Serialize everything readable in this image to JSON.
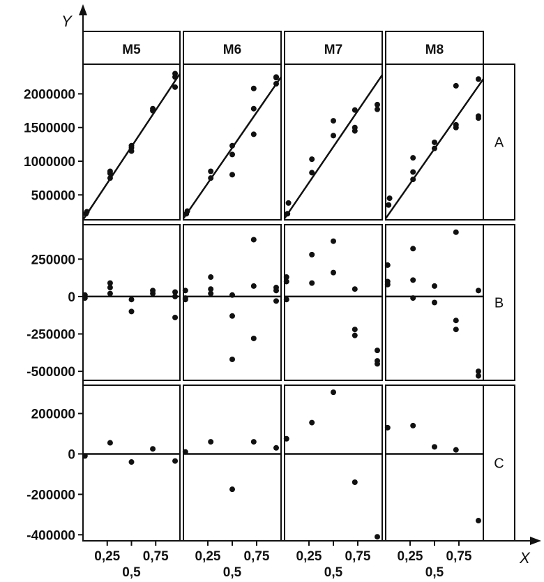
{
  "chart_data": {
    "type": "scatter",
    "axis_x_name": "X",
    "axis_y_name": "Y",
    "models": [
      "M5",
      "M6",
      "M7",
      "M8"
    ],
    "x_tick_labels": [
      "0,25",
      "0,5",
      "0,75"
    ],
    "x_ticks": [
      0.25,
      0.5,
      0.75
    ],
    "xlim": [
      0,
      1
    ],
    "rows": [
      {
        "label": "A",
        "ylim": [
          130000,
          2440000
        ],
        "y_tick_labels": [
          "500000",
          "1000000",
          "1500000",
          "2000000"
        ],
        "y_ticks": [
          500000,
          1000000,
          1500000,
          2000000
        ],
        "zero_line": false,
        "panels": [
          {
            "model": "M5",
            "fit_line": [
              [
                0,
                130000
              ],
              [
                1,
                2300000
              ]
            ],
            "points": [
              [
                0.03,
                220000
              ],
              [
                0.04,
                250000
              ],
              [
                0.28,
                750000
              ],
              [
                0.28,
                820000
              ],
              [
                0.28,
                850000
              ],
              [
                0.5,
                1150000
              ],
              [
                0.5,
                1200000
              ],
              [
                0.5,
                1230000
              ],
              [
                0.72,
                1750000
              ],
              [
                0.72,
                1780000
              ],
              [
                0.95,
                2100000
              ],
              [
                0.95,
                2250000
              ],
              [
                0.95,
                2300000
              ]
            ]
          },
          {
            "model": "M6",
            "fit_line": [
              [
                0,
                150000
              ],
              [
                1,
                2250000
              ]
            ],
            "points": [
              [
                0.03,
                220000
              ],
              [
                0.04,
                260000
              ],
              [
                0.28,
                750000
              ],
              [
                0.28,
                850000
              ],
              [
                0.5,
                800000
              ],
              [
                0.5,
                1100000
              ],
              [
                0.5,
                1230000
              ],
              [
                0.72,
                1400000
              ],
              [
                0.72,
                1780000
              ],
              [
                0.72,
                2080000
              ],
              [
                0.95,
                2150000
              ],
              [
                0.95,
                2240000
              ],
              [
                0.95,
                2250000
              ]
            ]
          },
          {
            "model": "M7",
            "fit_line": [
              [
                0,
                150000
              ],
              [
                1,
                2280000
              ]
            ],
            "points": [
              [
                0.03,
                220000
              ],
              [
                0.04,
                380000
              ],
              [
                0.28,
                830000
              ],
              [
                0.28,
                1030000
              ],
              [
                0.5,
                1380000
              ],
              [
                0.5,
                1600000
              ],
              [
                0.72,
                1450000
              ],
              [
                0.72,
                1500000
              ],
              [
                0.72,
                1760000
              ],
              [
                0.95,
                1770000
              ],
              [
                0.95,
                1840000
              ]
            ]
          },
          {
            "model": "M8",
            "fit_line": [
              [
                0,
                150000
              ],
              [
                1,
                2220000
              ]
            ],
            "points": [
              [
                0.03,
                350000
              ],
              [
                0.04,
                450000
              ],
              [
                0.28,
                730000
              ],
              [
                0.28,
                840000
              ],
              [
                0.28,
                1050000
              ],
              [
                0.5,
                1190000
              ],
              [
                0.5,
                1280000
              ],
              [
                0.72,
                1500000
              ],
              [
                0.72,
                1540000
              ],
              [
                0.72,
                2120000
              ],
              [
                0.95,
                1640000
              ],
              [
                0.95,
                1670000
              ],
              [
                0.95,
                2220000
              ]
            ]
          }
        ]
      },
      {
        "label": "B",
        "ylim": [
          -560000,
          480000
        ],
        "y_tick_labels": [
          "250000",
          "0",
          "-250000",
          "-500000"
        ],
        "y_ticks": [
          250000,
          0,
          -250000,
          -500000
        ],
        "zero_line": true,
        "panels": [
          {
            "model": "M5",
            "points": [
              [
                0.02,
                10000
              ],
              [
                0.02,
                -10000
              ],
              [
                0.28,
                60000
              ],
              [
                0.28,
                90000
              ],
              [
                0.28,
                20000
              ],
              [
                0.5,
                -20000
              ],
              [
                0.5,
                -100000
              ],
              [
                0.72,
                20000
              ],
              [
                0.72,
                40000
              ],
              [
                0.95,
                30000
              ],
              [
                0.95,
                0
              ],
              [
                0.95,
                -140000
              ]
            ]
          },
          {
            "model": "M6",
            "points": [
              [
                0.02,
                40000
              ],
              [
                0.02,
                -10000
              ],
              [
                0.02,
                -20000
              ],
              [
                0.28,
                130000
              ],
              [
                0.28,
                50000
              ],
              [
                0.28,
                20000
              ],
              [
                0.5,
                10000
              ],
              [
                0.5,
                -130000
              ],
              [
                0.5,
                -420000
              ],
              [
                0.72,
                380000
              ],
              [
                0.72,
                70000
              ],
              [
                0.72,
                -280000
              ],
              [
                0.95,
                60000
              ],
              [
                0.95,
                40000
              ],
              [
                0.95,
                -30000
              ]
            ]
          },
          {
            "model": "M7",
            "points": [
              [
                0.02,
                130000
              ],
              [
                0.02,
                100000
              ],
              [
                0.02,
                -20000
              ],
              [
                0.28,
                280000
              ],
              [
                0.28,
                90000
              ],
              [
                0.5,
                370000
              ],
              [
                0.5,
                160000
              ],
              [
                0.72,
                50000
              ],
              [
                0.72,
                -220000
              ],
              [
                0.72,
                -260000
              ],
              [
                0.95,
                -360000
              ],
              [
                0.95,
                -430000
              ],
              [
                0.95,
                -450000
              ]
            ]
          },
          {
            "model": "M8",
            "points": [
              [
                0.02,
                210000
              ],
              [
                0.02,
                100000
              ],
              [
                0.02,
                80000
              ],
              [
                0.28,
                320000
              ],
              [
                0.28,
                110000
              ],
              [
                0.28,
                -10000
              ],
              [
                0.5,
                70000
              ],
              [
                0.5,
                -40000
              ],
              [
                0.72,
                430000
              ],
              [
                0.72,
                -160000
              ],
              [
                0.72,
                -220000
              ],
              [
                0.95,
                40000
              ],
              [
                0.95,
                -500000
              ],
              [
                0.95,
                -530000
              ]
            ]
          }
        ]
      },
      {
        "label": "C",
        "ylim": [
          -430000,
          340000
        ],
        "y_tick_labels": [
          "200000",
          "0",
          "-200000",
          "-400000"
        ],
        "y_ticks": [
          200000,
          0,
          -200000,
          -400000
        ],
        "zero_line": true,
        "panels": [
          {
            "model": "M5",
            "points": [
              [
                0.02,
                -10000
              ],
              [
                0.28,
                55000
              ],
              [
                0.5,
                -40000
              ],
              [
                0.72,
                25000
              ],
              [
                0.95,
                -35000
              ]
            ]
          },
          {
            "model": "M6",
            "points": [
              [
                0.02,
                10000
              ],
              [
                0.28,
                60000
              ],
              [
                0.5,
                -175000
              ],
              [
                0.72,
                60000
              ],
              [
                0.95,
                30000
              ]
            ]
          },
          {
            "model": "M7",
            "points": [
              [
                0.02,
                75000
              ],
              [
                0.28,
                155000
              ],
              [
                0.5,
                305000
              ],
              [
                0.72,
                -140000
              ],
              [
                0.95,
                -410000
              ]
            ]
          },
          {
            "model": "M8",
            "points": [
              [
                0.02,
                130000
              ],
              [
                0.28,
                140000
              ],
              [
                0.5,
                35000
              ],
              [
                0.72,
                20000
              ],
              [
                0.95,
                -330000
              ]
            ]
          }
        ]
      }
    ]
  }
}
